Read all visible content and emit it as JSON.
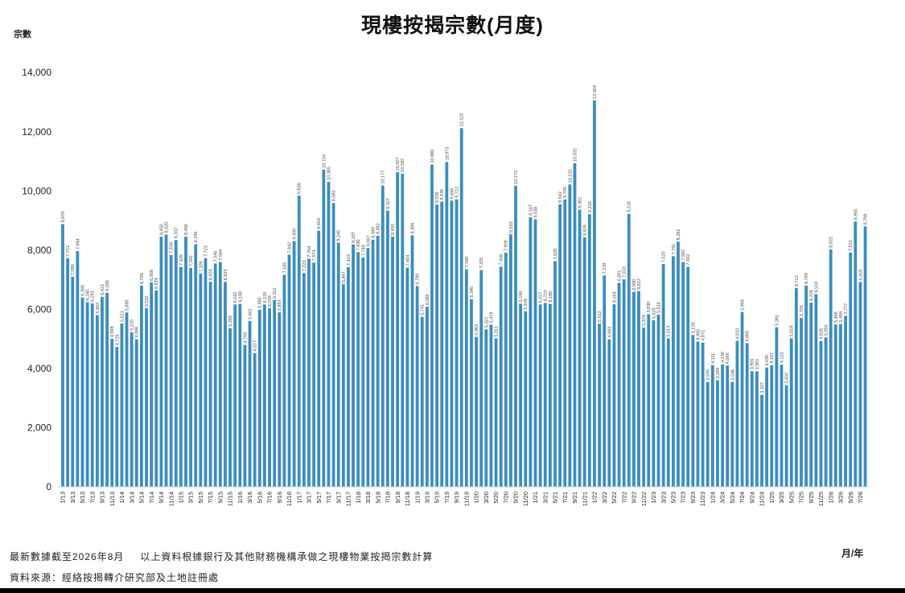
{
  "chart_data": {
    "type": "bar",
    "title": "現樓按揭宗數(月度)",
    "ylabel": "宗數",
    "xlabel": "月/年",
    "ylim": [
      0,
      14000
    ],
    "grid": false,
    "bar_color": "#3a8dbf",
    "y_ticks": [
      "0",
      "2,000",
      "4,000",
      "6,000",
      "8,000",
      "10,000",
      "12,000",
      "14,000"
    ],
    "x_ticks": [
      "1/13",
      "3/13",
      "5/13",
      "7/13",
      "9/13",
      "11/13",
      "1/14",
      "3/14",
      "5/14",
      "7/14",
      "9/14",
      "11/14",
      "1/15",
      "3/15",
      "5/15",
      "7/15",
      "9/15",
      "11/15",
      "1/16",
      "3/16",
      "5/16",
      "7/16",
      "9/16",
      "11/16",
      "1/17",
      "3/17",
      "5/17",
      "7/17",
      "9/17",
      "11/17",
      "1/18",
      "3/18",
      "5/18",
      "7/18",
      "9/18",
      "11/18",
      "1/19",
      "3/19",
      "5/19",
      "7/19",
      "9/19",
      "11/19",
      "1/20",
      "3/20",
      "5/20",
      "7/20",
      "9/20",
      "11/20",
      "1/21",
      "3/21",
      "5/21",
      "7/21",
      "9/21",
      "11/21",
      "1/22",
      "3/22",
      "5/22",
      "7/22",
      "9/22",
      "11/22",
      "1/23",
      "3/23",
      "5/23",
      "7/23",
      "9/23",
      "11/23",
      "1/24",
      "3/24",
      "5/24",
      "7/24",
      "9/24",
      "11/24",
      "1/25",
      "3/25",
      "5/25",
      "7/25",
      "9/25",
      "11/25",
      "1/26",
      "3/26",
      "5/26",
      "7/26"
    ],
    "values": [
      8876,
      7721,
      7096,
      7964,
      6395,
      6240,
      6193,
      5802,
      6421,
      6556,
      4998,
      4725,
      5521,
      5890,
      5220,
      4986,
      6796,
      6032,
      6908,
      6634,
      8450,
      8520,
      7834,
      8337,
      7426,
      8450,
      7392,
      8196,
      7205,
      7723,
      6924,
      7545,
      7594,
      6923,
      5358,
      6162,
      6180,
      4793,
      5601,
      4517,
      5980,
      6159,
      6033,
      6311,
      5893,
      7165,
      7842,
      8300,
      9838,
      7223,
      7704,
      7574,
      8654,
      10716,
      10305,
      9590,
      8245,
      6847,
      7423,
      8187,
      7930,
      7746,
      8067,
      8349,
      8482,
      10177,
      9327,
      8455,
      10627,
      10582,
      7404,
      8496,
      6780,
      5741,
      6085,
      10886,
      9535,
      9635,
      10973,
      9666,
      9712,
      12118,
      7348,
      6340,
      5063,
      7325,
      5321,
      5478,
      5011,
      7436,
      7909,
      8533,
      10172,
      6190,
      5928,
      9107,
      9038,
      6157,
      6214,
      6180,
      7626,
      9542,
      9705,
      10215,
      10931,
      9362,
      8426,
      9210,
      13054,
      5512,
      7139,
      4983,
      6164,
      6891,
      7010,
      9218,
      6590,
      6612,
      5379,
      5830,
      5625,
      5816,
      7525,
      5013,
      7791,
      8282,
      7592,
      7432,
      5129,
      4905,
      4872,
      3540,
      4111,
      3599,
      4136,
      4098,
      3546,
      4932,
      5904,
      4850,
      3905,
      3901,
      3107,
      4030,
      4107,
      5391,
      4125,
      3432,
      5018,
      6712,
      5705,
      6799,
      6224,
      6510,
      4926,
      5050,
      8022,
      5488,
      5498,
      5777,
      7912,
      8965,
      6918,
      8798
    ]
  },
  "footer": {
    "note_date": "最新數據截至2026年8月",
    "note_basis": "以上資料根據銀行及其他財務機構承做之現樓物業按揭宗數計算",
    "source": "資料來源：經絡按揭轉介研究部及土地註冊處"
  }
}
